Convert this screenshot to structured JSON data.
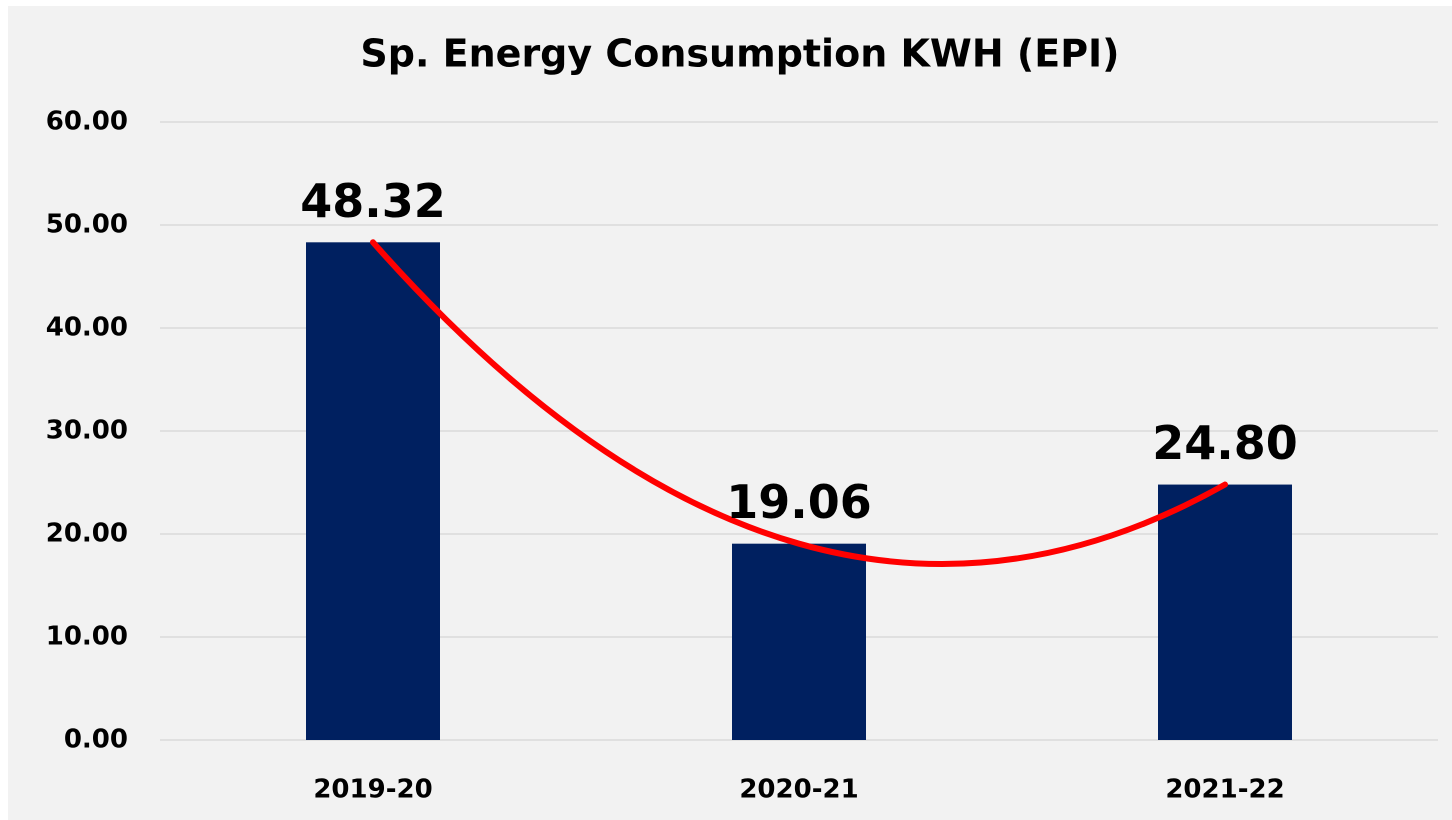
{
  "chart_data": {
    "type": "bar",
    "title": "Sp. Energy Consumption KWH (EPI)",
    "categories": [
      "2019-20",
      "2020-21",
      "2021-22"
    ],
    "values": [
      48.32,
      19.06,
      24.8
    ],
    "value_labels": [
      "48.32",
      "19.06",
      "24.80"
    ],
    "color": "#002060",
    "ylim": [
      0,
      60
    ],
    "yticks": [
      {
        "value": 0,
        "label": "0.00"
      },
      {
        "value": 10,
        "label": "10.00"
      },
      {
        "value": 20,
        "label": "20.00"
      },
      {
        "value": 30,
        "label": "30.00"
      },
      {
        "value": 40,
        "label": "40.00"
      },
      {
        "value": 50,
        "label": "50.00"
      },
      {
        "value": 60,
        "label": "60.00"
      }
    ],
    "grid": true,
    "trendline": "polynomial",
    "trendline_color": "#ff0000"
  }
}
